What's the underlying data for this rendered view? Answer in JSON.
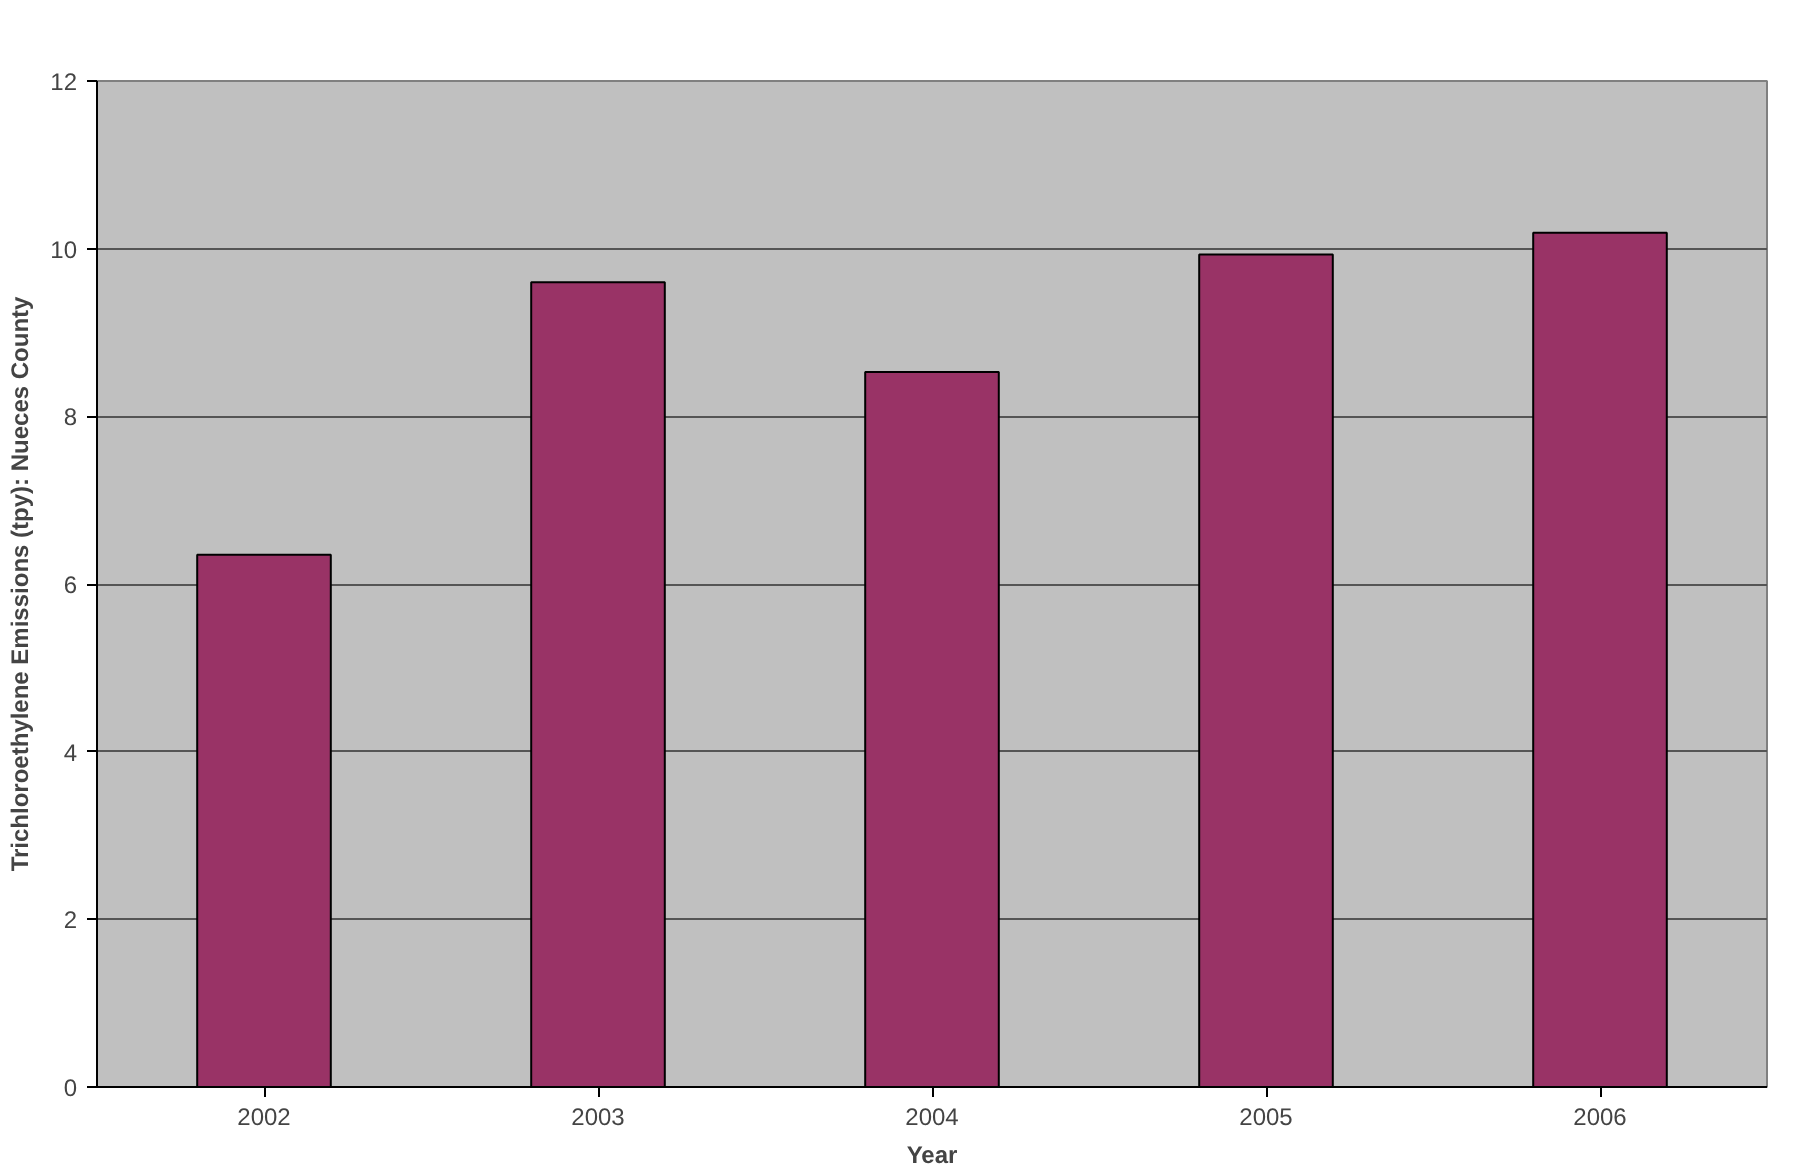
{
  "chart_data": {
    "type": "bar",
    "xlabel": "Year",
    "ylabel": "Trichloroethylene Emissions (tpy): Nueces County",
    "categories": [
      "2002",
      "2003",
      "2004",
      "2005",
      "2006"
    ],
    "series": [
      {
        "color": "#993366",
        "values": [
          6.35,
          9.6,
          8.53,
          9.93,
          10.19
        ]
      }
    ],
    "ylim": [
      0,
      12
    ],
    "yticks": [
      0,
      2,
      4,
      6,
      8,
      10,
      12
    ],
    "grid": "y"
  }
}
